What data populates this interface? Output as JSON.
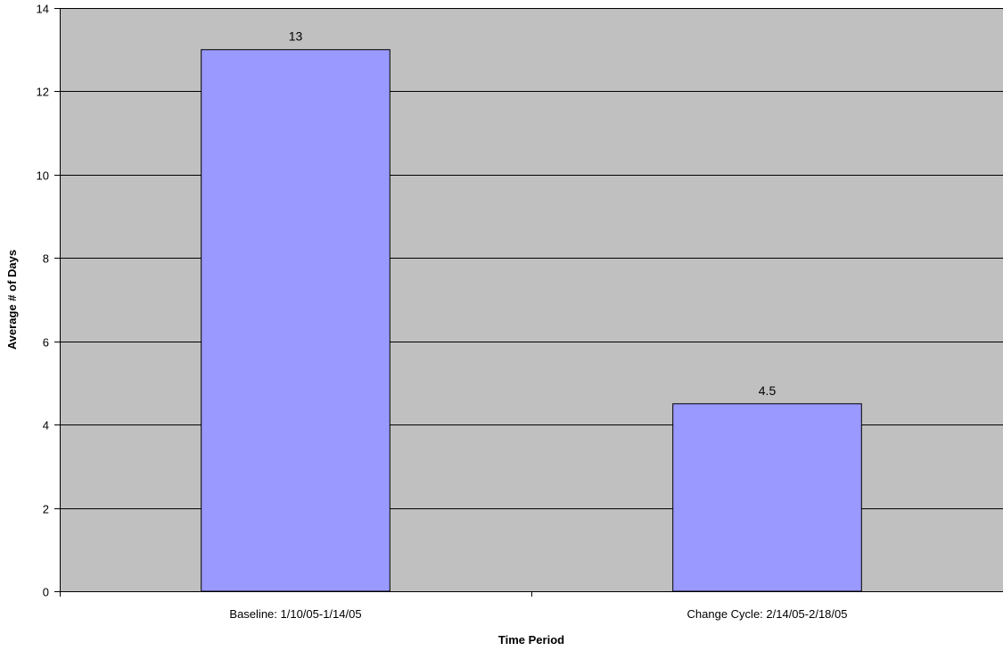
{
  "colors": {
    "plot_background": "#c0c0c0",
    "bar_fill": "#9999ff",
    "bar_stroke": "#000000",
    "gridline": "#000000"
  },
  "chart_data": {
    "type": "bar",
    "title": "",
    "xlabel": "Time Period",
    "ylabel": "Average # of Days",
    "categories": [
      "Baseline: 1/10/05-1/14/05",
      "Change Cycle: 2/14/05-2/18/05"
    ],
    "values": [
      13,
      4.5
    ],
    "data_labels": [
      "13",
      "4.5"
    ],
    "ylim": [
      0,
      14
    ],
    "yticks": [
      0,
      2,
      4,
      6,
      8,
      10,
      12,
      14
    ],
    "grid": true,
    "legend": "none"
  }
}
